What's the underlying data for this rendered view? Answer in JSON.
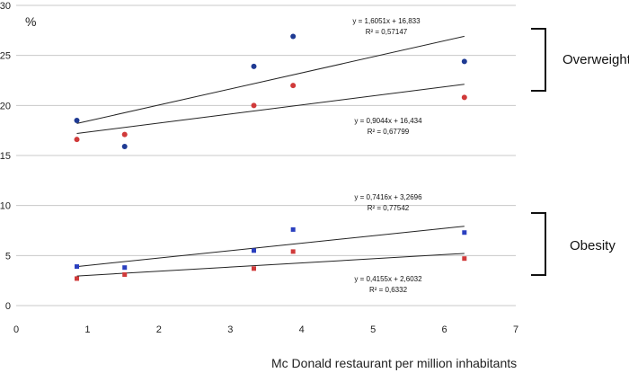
{
  "chart_data": {
    "type": "scatter",
    "title": "",
    "xlabel": "Mc Donald restaurant per million inhabitants",
    "ylabel": "%",
    "xlim": [
      0,
      7
    ],
    "ylim": [
      0,
      30
    ],
    "x_ticks": [
      "0",
      "1",
      "2",
      "3",
      "4",
      "5",
      "6",
      "7"
    ],
    "y_ticks": [
      "0",
      "5",
      "10",
      "15",
      "20",
      "25",
      "30"
    ],
    "grid": "horizontal",
    "colors": {
      "blue": "#1f3a93",
      "red": "#d03a3a",
      "line": "#222222",
      "grid": "#c8c8c8"
    },
    "series": [
      {
        "name": "Overweight (blue)",
        "marker": "circle",
        "color": "#1f3a93",
        "x": [
          0.85,
          1.52,
          3.33,
          3.88,
          6.28
        ],
        "y": [
          18.5,
          15.9,
          23.9,
          26.9,
          24.4
        ],
        "trendline": {
          "slope": 1.6051,
          "intercept": 16.833,
          "x_range": [
            0.85,
            6.28
          ]
        },
        "equation": "y = 1,6051x + 16,833",
        "r2": "R² = 0,57147"
      },
      {
        "name": "Overweight (red)",
        "marker": "circle",
        "color": "#d03a3a",
        "x": [
          0.85,
          1.52,
          3.33,
          3.88,
          6.28
        ],
        "y": [
          16.6,
          17.1,
          20.0,
          22.0,
          20.8
        ],
        "trendline": {
          "slope": 0.9044,
          "intercept": 16.434,
          "x_range": [
            0.85,
            6.28
          ]
        },
        "equation": "y = 0,9044x + 16,434",
        "r2": "R² = 0,67799"
      },
      {
        "name": "Obesity (blue)",
        "marker": "square",
        "color": "#2a3fbf",
        "x": [
          0.85,
          1.52,
          3.33,
          3.88,
          6.28
        ],
        "y": [
          3.9,
          3.8,
          5.5,
          7.6,
          7.3
        ],
        "trendline": {
          "slope": 0.7416,
          "intercept": 3.2696,
          "x_range": [
            0.85,
            6.28
          ]
        },
        "equation": "y = 0,7416x + 3,2696",
        "r2": "R² = 0,77542"
      },
      {
        "name": "Obesity (red)",
        "marker": "square",
        "color": "#d03a3a",
        "x": [
          0.85,
          1.52,
          3.33,
          3.88,
          6.28
        ],
        "y": [
          2.7,
          3.1,
          3.7,
          5.4,
          4.7
        ],
        "trendline": {
          "slope": 0.4155,
          "intercept": 2.6032,
          "x_range": [
            0.85,
            6.28
          ]
        },
        "equation": "y = 0,4155x + 2,6032",
        "r2": "R² = 0,6332"
      }
    ],
    "groups": [
      {
        "label": "Overweight",
        "y_range": [
          21.5,
          28.0
        ]
      },
      {
        "label": "Obesity",
        "y_range": [
          2.9,
          9.4
        ]
      }
    ]
  }
}
